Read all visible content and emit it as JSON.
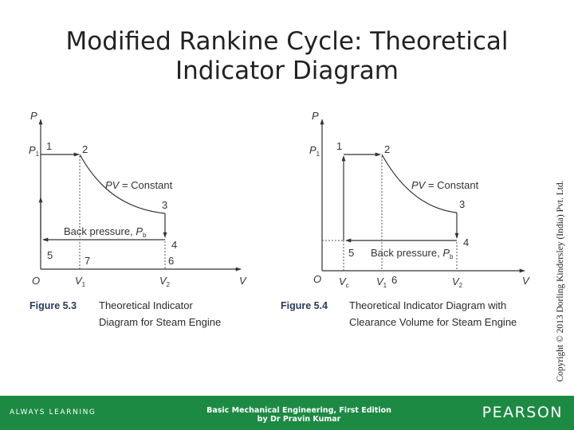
{
  "slide": {
    "title_line1": "Modified Rankine Cycle: Theoretical",
    "title_line2": "Indicator Diagram",
    "copyright": "Copyright © 2013 Dorling Kindersley (India) Pvt. Ltd."
  },
  "figure_left": {
    "number": "Figure 5.3",
    "caption_line1": "Theoretical Indicator",
    "caption_line2": "Diagram for Steam Engine",
    "axis_p": "P",
    "axis_v": "V",
    "origin": "O",
    "p1_main": "P",
    "p1_sub": "1",
    "v1_main": "V",
    "v1_sub": "1",
    "v2_main": "V",
    "v2_sub": "2",
    "curve_label_pv": "PV",
    "curve_label_rest": " = Constant",
    "back_pressure": "Back pressure, ",
    "pb_main": "P",
    "pb_sub": "b",
    "points": [
      "1",
      "2",
      "3",
      "4",
      "5",
      "6",
      "7"
    ]
  },
  "figure_right": {
    "number": "Figure 5.4",
    "caption_line1": "Theoretical Indicator Diagram with",
    "caption_line2": "Clearance Volume for Steam Engine",
    "axis_p": "P",
    "axis_v": "V",
    "origin": "O",
    "p1_main": "P",
    "p1_sub": "1",
    "vc_main": "V",
    "vc_sub": "c",
    "v1_main": "V",
    "v1_sub": "1",
    "v2_main": "V",
    "v2_sub": "2",
    "curve_label_pv": "PV",
    "curve_label_rest": " = Constant",
    "back_pressure": "Back pressure, ",
    "pb_main": "P",
    "pb_sub": "b",
    "points": [
      "1",
      "2",
      "3",
      "4",
      "5",
      "6"
    ]
  },
  "footer": {
    "left": "ALWAYS LEARNING",
    "center_line1": "Basic Mechanical Engineering, First Edition",
    "center_line2": "by Dr Pravin Kumar",
    "right": "PEARSON"
  },
  "colors": {
    "footer_bg": "#1d8a44",
    "line": "#333333",
    "dotted": "#555555"
  }
}
